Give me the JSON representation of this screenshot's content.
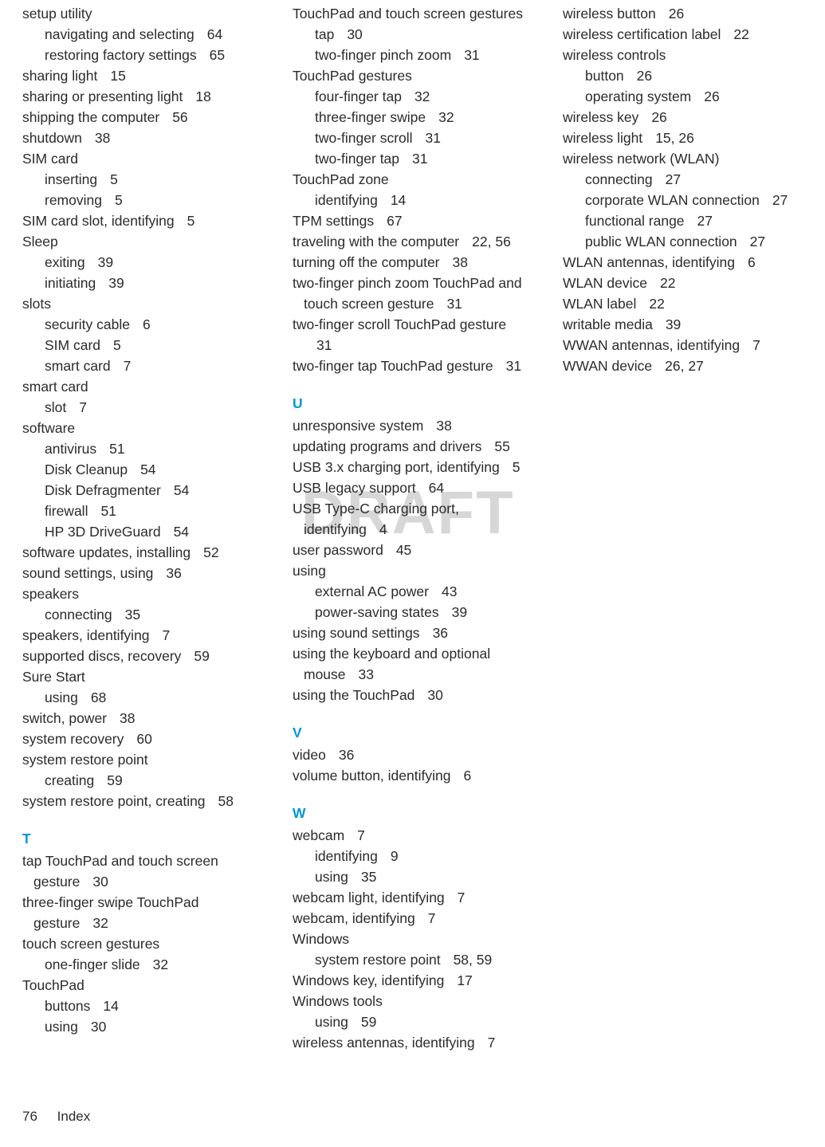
{
  "watermark": "DRAFT",
  "footer": {
    "page_number": "76",
    "section": "Index"
  },
  "columns": [
    {
      "items": [
        {
          "t": "setup utility"
        },
        {
          "t": "navigating and selecting",
          "p": "64",
          "sub": true
        },
        {
          "t": "restoring factory settings",
          "p": "65",
          "sub": true
        },
        {
          "t": "sharing light",
          "p": "15"
        },
        {
          "t": "sharing or presenting light",
          "p": "18"
        },
        {
          "t": "shipping the computer",
          "p": "56"
        },
        {
          "t": "shutdown",
          "p": "38"
        },
        {
          "t": "SIM card"
        },
        {
          "t": "inserting",
          "p": "5",
          "sub": true
        },
        {
          "t": "removing",
          "p": "5",
          "sub": true
        },
        {
          "t": "SIM card slot, identifying",
          "p": "5"
        },
        {
          "t": "Sleep"
        },
        {
          "t": "exiting",
          "p": "39",
          "sub": true
        },
        {
          "t": "initiating",
          "p": "39",
          "sub": true
        },
        {
          "t": "slots"
        },
        {
          "t": "security cable",
          "p": "6",
          "sub": true
        },
        {
          "t": "SIM card",
          "p": "5",
          "sub": true
        },
        {
          "t": "smart card",
          "p": "7",
          "sub": true
        },
        {
          "t": "smart card"
        },
        {
          "t": "slot",
          "p": "7",
          "sub": true
        },
        {
          "t": "software"
        },
        {
          "t": "antivirus",
          "p": "51",
          "sub": true
        },
        {
          "t": "Disk Cleanup",
          "p": "54",
          "sub": true
        },
        {
          "t": "Disk Defragmenter",
          "p": "54",
          "sub": true
        },
        {
          "t": "firewall",
          "p": "51",
          "sub": true
        },
        {
          "t": "HP 3D DriveGuard",
          "p": "54",
          "sub": true
        },
        {
          "t": "software updates, installing",
          "p": "52"
        },
        {
          "t": "sound settings, using",
          "p": "36"
        },
        {
          "t": "speakers"
        },
        {
          "t": "connecting",
          "p": "35",
          "sub": true
        },
        {
          "t": "speakers, identifying",
          "p": "7"
        },
        {
          "t": "supported discs, recovery",
          "p": "59"
        },
        {
          "t": "Sure Start"
        },
        {
          "t": "using",
          "p": "68",
          "sub": true
        },
        {
          "t": "switch, power",
          "p": "38"
        },
        {
          "t": "system recovery",
          "p": "60"
        },
        {
          "t": "system restore point"
        },
        {
          "t": "creating",
          "p": "59",
          "sub": true
        },
        {
          "t": "system restore point, creating",
          "p": "58"
        },
        {
          "letter": "T"
        },
        {
          "t": "tap TouchPad and touch screen"
        },
        {
          "t": "gesture",
          "p": "30",
          "wrap": true
        },
        {
          "t": "three-finger swipe TouchPad"
        },
        {
          "t": "gesture",
          "p": "32",
          "wrap": true
        },
        {
          "t": "touch screen gestures"
        },
        {
          "t": "one-finger slide",
          "p": "32",
          "sub": true
        },
        {
          "t": "TouchPad"
        },
        {
          "t": "buttons",
          "p": "14",
          "sub": true
        },
        {
          "t": "using",
          "p": "30",
          "sub": true
        }
      ]
    },
    {
      "items": [
        {
          "t": "TouchPad and touch screen gestures"
        },
        {
          "t": "tap",
          "p": "30",
          "sub": true
        },
        {
          "t": "two-finger pinch zoom",
          "p": "31",
          "sub": true
        },
        {
          "t": "TouchPad gestures"
        },
        {
          "t": "four-finger tap",
          "p": "32",
          "sub": true
        },
        {
          "t": "three-finger swipe",
          "p": "32",
          "sub": true
        },
        {
          "t": "two-finger scroll",
          "p": "31",
          "sub": true
        },
        {
          "t": "two-finger tap",
          "p": "31",
          "sub": true
        },
        {
          "t": "TouchPad zone"
        },
        {
          "t": "identifying",
          "p": "14",
          "sub": true
        },
        {
          "t": "TPM settings",
          "p": "67"
        },
        {
          "t": "traveling with the computer",
          "p": "22, 56"
        },
        {
          "t": "turning off the computer",
          "p": "38"
        },
        {
          "t": "two-finger pinch zoom TouchPad and"
        },
        {
          "t": "touch screen gesture",
          "p": "31",
          "wrap": true
        },
        {
          "t": "two-finger scroll TouchPad gesture"
        },
        {
          "t": "",
          "p": "31",
          "wrap": true
        },
        {
          "t": "two-finger tap TouchPad gesture",
          "p": "31"
        },
        {
          "letter": "U"
        },
        {
          "t": "unresponsive system",
          "p": "38"
        },
        {
          "t": "updating programs and drivers",
          "p": "55"
        },
        {
          "t": "USB 3.x charging port, identifying",
          "p": "5"
        },
        {
          "t": "USB legacy support",
          "p": "64"
        },
        {
          "t": "USB Type-C charging port,"
        },
        {
          "t": "identifying",
          "p": "4",
          "wrap": true
        },
        {
          "t": "user password",
          "p": "45"
        },
        {
          "t": "using"
        },
        {
          "t": "external AC power",
          "p": "43",
          "sub": true
        },
        {
          "t": "power-saving states",
          "p": "39",
          "sub": true
        },
        {
          "t": "using sound settings",
          "p": "36"
        },
        {
          "t": "using the keyboard and optional"
        },
        {
          "t": "mouse",
          "p": "33",
          "wrap": true
        },
        {
          "t": "using the TouchPad",
          "p": "30"
        },
        {
          "letter": "V"
        },
        {
          "t": "video",
          "p": "36"
        },
        {
          "t": "volume button, identifying",
          "p": "6"
        },
        {
          "letter": "W"
        },
        {
          "t": "webcam",
          "p": "7"
        },
        {
          "t": "identifying",
          "p": "9",
          "sub": true
        },
        {
          "t": "using",
          "p": "35",
          "sub": true
        },
        {
          "t": "webcam light, identifying",
          "p": "7"
        },
        {
          "t": "webcam, identifying",
          "p": "7"
        },
        {
          "t": "Windows"
        },
        {
          "t": "system restore point",
          "p": "58, 59",
          "sub": true
        },
        {
          "t": "Windows key, identifying",
          "p": "17"
        },
        {
          "t": "Windows tools"
        },
        {
          "t": "using",
          "p": "59",
          "sub": true
        },
        {
          "t": "wireless antennas, identifying",
          "p": "7"
        }
      ]
    },
    {
      "items": [
        {
          "t": "wireless button",
          "p": "26"
        },
        {
          "t": "wireless certification label",
          "p": "22"
        },
        {
          "t": "wireless controls"
        },
        {
          "t": "button",
          "p": "26",
          "sub": true
        },
        {
          "t": "operating system",
          "p": "26",
          "sub": true
        },
        {
          "t": "wireless key",
          "p": "26"
        },
        {
          "t": "wireless light",
          "p": "15, 26"
        },
        {
          "t": "wireless network (WLAN)"
        },
        {
          "t": "connecting",
          "p": "27",
          "sub": true
        },
        {
          "t": "corporate WLAN connection",
          "p": "27",
          "sub": true
        },
        {
          "t": "functional range",
          "p": "27",
          "sub": true
        },
        {
          "t": "public WLAN connection",
          "p": "27",
          "sub": true
        },
        {
          "t": "WLAN antennas, identifying",
          "p": "6"
        },
        {
          "t": "WLAN device",
          "p": "22"
        },
        {
          "t": "WLAN label",
          "p": "22"
        },
        {
          "t": "writable media",
          "p": "39"
        },
        {
          "t": "WWAN antennas, identifying",
          "p": "7"
        },
        {
          "t": "WWAN device",
          "p": "26, 27"
        }
      ]
    }
  ]
}
